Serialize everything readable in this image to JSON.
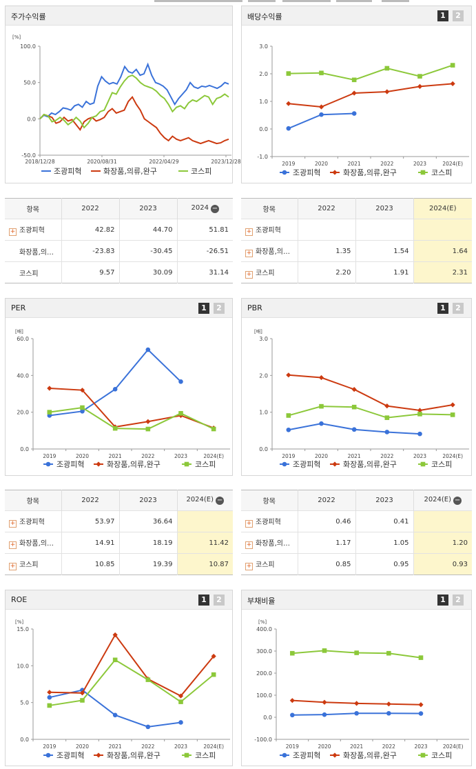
{
  "colors": {
    "s1": "#3a72d9",
    "s2": "#cc3a10",
    "s3": "#8cc83a"
  },
  "legend": [
    "조광피혁",
    "화장품,의류,완구",
    "코스피"
  ],
  "years": [
    "2019",
    "2020",
    "2021",
    "2022",
    "2023",
    "2024(E)"
  ],
  "panels": {
    "stock": {
      "title": "주가수익률"
    },
    "dividend": {
      "title": "배당수익률",
      "toggle1": "1",
      "toggle2": "2"
    },
    "per": {
      "title": "PER",
      "toggle1": "1",
      "toggle2": "2"
    },
    "pbr": {
      "title": "PBR",
      "toggle1": "1",
      "toggle2": "2"
    },
    "roe": {
      "title": "ROE",
      "toggle1": "1",
      "toggle2": "2"
    },
    "debt": {
      "title": "부채비율",
      "toggle1": "1",
      "toggle2": "2"
    }
  },
  "tables": {
    "stock": {
      "headers": [
        "항목",
        "2022",
        "2023",
        "2024"
      ],
      "rows": [
        {
          "name": "조광피혁",
          "plus": true,
          "v": [
            "42.82",
            "44.70",
            "51.81"
          ]
        },
        {
          "name": "화장품,의…",
          "plus": false,
          "v": [
            "-23.83",
            "-30.45",
            "-26.51"
          ]
        },
        {
          "name": "코스피",
          "plus": false,
          "v": [
            "9.57",
            "30.09",
            "31.14"
          ]
        }
      ]
    },
    "dividend": {
      "headers": [
        "항목",
        "2022",
        "2023",
        "2024(E)"
      ],
      "rows": [
        {
          "name": "조광피혁",
          "plus": true,
          "v": [
            "",
            "",
            ""
          ]
        },
        {
          "name": "화장품,의…",
          "plus": true,
          "v": [
            "1.35",
            "1.54",
            "1.64"
          ]
        },
        {
          "name": "코스피",
          "plus": true,
          "v": [
            "2.20",
            "1.91",
            "2.31"
          ]
        }
      ]
    },
    "per": {
      "headers": [
        "항목",
        "2022",
        "2023",
        "2024(E)"
      ],
      "rows": [
        {
          "name": "조광피혁",
          "plus": true,
          "v": [
            "53.97",
            "36.64",
            ""
          ]
        },
        {
          "name": "화장품,의…",
          "plus": true,
          "v": [
            "14.91",
            "18.19",
            "11.42"
          ]
        },
        {
          "name": "코스피",
          "plus": true,
          "v": [
            "10.85",
            "19.39",
            "10.87"
          ]
        }
      ]
    },
    "pbr": {
      "headers": [
        "항목",
        "2022",
        "2023",
        "2024(E)"
      ],
      "rows": [
        {
          "name": "조광피혁",
          "plus": true,
          "v": [
            "0.46",
            "0.41",
            ""
          ]
        },
        {
          "name": "화장품,의…",
          "plus": true,
          "v": [
            "1.17",
            "1.05",
            "1.20"
          ]
        },
        {
          "name": "코스피",
          "plus": true,
          "v": [
            "0.85",
            "0.95",
            "0.93"
          ]
        }
      ]
    }
  },
  "chart_data": [
    {
      "id": "stock",
      "type": "line",
      "ylabel": "[%]",
      "ylim": [
        -50,
        100
      ],
      "yticks": [
        "100.0",
        "50.0",
        "0.0",
        "-50.0"
      ],
      "xticks": [
        "2018/12/28",
        "2020/08/31",
        "2022/04/29",
        "2023/12/28"
      ],
      "series": [
        {
          "name": "조광피혁",
          "values": [
            0,
            5,
            3,
            8,
            6,
            10,
            15,
            14,
            12,
            18,
            20,
            16,
            24,
            20,
            22,
            45,
            58,
            52,
            48,
            50,
            48,
            58,
            72,
            65,
            63,
            68,
            60,
            62,
            75,
            60,
            50,
            48,
            45,
            40,
            30,
            20,
            28,
            34,
            40,
            50,
            44,
            42,
            45,
            44,
            46,
            44,
            42,
            45,
            50,
            48
          ]
        },
        {
          "name": "화장품,의류,완구",
          "values": [
            0,
            6,
            4,
            2,
            -6,
            -4,
            2,
            -3,
            -1,
            -8,
            -15,
            -4,
            0,
            2,
            -3,
            -1,
            2,
            10,
            14,
            8,
            10,
            12,
            24,
            30,
            20,
            12,
            0,
            -4,
            -8,
            -12,
            -20,
            -26,
            -30,
            -24,
            -28,
            -30,
            -28,
            -26,
            -30,
            -32,
            -34,
            -32,
            -30,
            -32,
            -34,
            -33,
            -30,
            -28
          ]
        },
        {
          "name": "코스피",
          "values": [
            0,
            6,
            4,
            -4,
            -2,
            2,
            -2,
            -8,
            -4,
            2,
            -3,
            -12,
            -6,
            2,
            4,
            10,
            12,
            24,
            36,
            34,
            44,
            52,
            58,
            60,
            56,
            50,
            46,
            44,
            42,
            38,
            32,
            28,
            20,
            10,
            16,
            18,
            14,
            22,
            26,
            24,
            28,
            32,
            30,
            20,
            28,
            30,
            34,
            30
          ]
        }
      ]
    },
    {
      "id": "dividend",
      "type": "line",
      "ylabel": "",
      "ylim": [
        -1,
        3
      ],
      "yticks": [
        "3.0",
        "2.0",
        "1.0",
        "0.0",
        "-1.0"
      ],
      "categories": [
        "2019",
        "2020",
        "2021",
        "2022",
        "2023",
        "2024(E)"
      ],
      "series": [
        {
          "name": "조광피혁",
          "values": [
            0.02,
            0.52,
            0.56,
            null,
            null,
            null
          ]
        },
        {
          "name": "화장품,의류,완구",
          "values": [
            0.92,
            0.8,
            1.3,
            1.35,
            1.54,
            1.64
          ]
        },
        {
          "name": "코스피",
          "values": [
            2.01,
            2.03,
            1.78,
            2.2,
            1.91,
            2.31
          ]
        }
      ]
    },
    {
      "id": "per",
      "type": "line",
      "ylabel": "[배]",
      "ylim": [
        0,
        60
      ],
      "yticks": [
        "60.0",
        "40.0",
        "20.0",
        "0.0"
      ],
      "categories": [
        "2019",
        "2020",
        "2021",
        "2022",
        "2023",
        "2024(E)"
      ],
      "series": [
        {
          "name": "조광피혁",
          "values": [
            18.2,
            20.5,
            32.5,
            53.97,
            36.64,
            null
          ]
        },
        {
          "name": "화장품,의류,완구",
          "values": [
            33.0,
            32.0,
            12.0,
            14.91,
            18.19,
            11.42
          ]
        },
        {
          "name": "코스피",
          "values": [
            20.0,
            22.5,
            11.2,
            10.85,
            19.39,
            10.87
          ]
        }
      ]
    },
    {
      "id": "pbr",
      "type": "line",
      "ylabel": "[배]",
      "ylim": [
        0,
        3
      ],
      "yticks": [
        "3.0",
        "2.0",
        "1.0",
        "0.0"
      ],
      "categories": [
        "2019",
        "2020",
        "2021",
        "2022",
        "2023",
        "2024(E)"
      ],
      "series": [
        {
          "name": "조광피혁",
          "values": [
            0.52,
            0.69,
            0.53,
            0.46,
            0.41,
            null
          ]
        },
        {
          "name": "화장품,의류,완구",
          "values": [
            2.01,
            1.94,
            1.62,
            1.17,
            1.05,
            1.2
          ]
        },
        {
          "name": "코스피",
          "values": [
            0.91,
            1.16,
            1.14,
            0.85,
            0.95,
            0.93
          ]
        }
      ]
    },
    {
      "id": "roe",
      "type": "line",
      "ylabel": "[%]",
      "ylim": [
        0,
        15
      ],
      "yticks": [
        "15.0",
        "10.0",
        "5.0",
        "0.0"
      ],
      "categories": [
        "2019",
        "2020",
        "2021",
        "2022",
        "2023",
        "2024(E)"
      ],
      "series": [
        {
          "name": "조광피혁",
          "values": [
            5.7,
            6.7,
            3.3,
            1.7,
            2.3,
            null
          ]
        },
        {
          "name": "화장품,의류,완구",
          "values": [
            6.4,
            6.3,
            14.2,
            8.2,
            5.9,
            11.3
          ]
        },
        {
          "name": "코스피",
          "values": [
            4.6,
            5.3,
            10.8,
            8.1,
            5.1,
            8.8
          ]
        }
      ]
    },
    {
      "id": "debt",
      "type": "line",
      "ylabel": "[%]",
      "ylim": [
        -100,
        400
      ],
      "yticks": [
        "400.0",
        "300.0",
        "200.0",
        "100.0",
        "0.0",
        "-100.0"
      ],
      "categories": [
        "2019",
        "2020",
        "2021",
        "2022",
        "2023",
        "2024(E)"
      ],
      "series": [
        {
          "name": "조광피혁",
          "values": [
            10,
            12,
            18,
            18,
            17,
            null
          ]
        },
        {
          "name": "화장품,의류,완구",
          "values": [
            76,
            68,
            63,
            60,
            57,
            null
          ]
        },
        {
          "name": "코스피",
          "values": [
            290,
            302,
            292,
            290,
            270,
            null
          ]
        }
      ]
    }
  ]
}
